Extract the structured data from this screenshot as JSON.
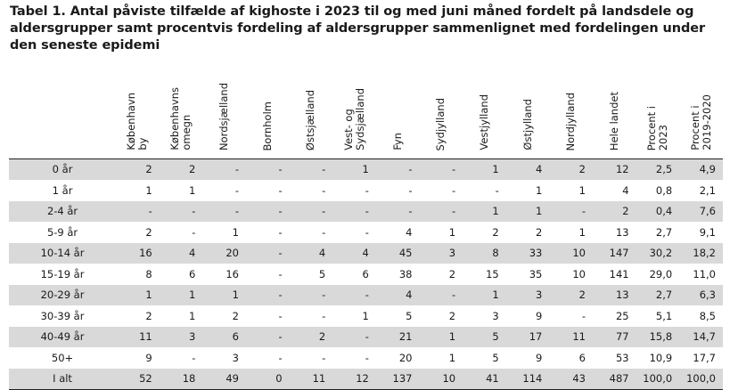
{
  "title": "Tabel 1. Antal påviste tilfælde af kighoste i 2023 til og med juni måned fordelt på landsdele og aldersgrupper samt procentvis fordeling af aldersgrupper sammenlignet med fordelingen under den seneste epidemi",
  "columns": [
    "København\nby",
    "Københavns\nomegn",
    "Nordsjælland",
    "Bornholm",
    "Østsjælland",
    "Vest- og\nSydsjælland",
    "Fyn",
    "Sydjylland",
    "Vestjylland",
    "Østjylland",
    "Nordjylland",
    "Hele landet",
    "Procent i\n2023",
    "Procent i\n2019-2020"
  ],
  "rows": [
    {
      "label": "0 år",
      "cells": [
        "2",
        "2",
        "-",
        "-",
        "-",
        "1",
        "-",
        "-",
        "1",
        "4",
        "2",
        "12",
        "2,5",
        "4,9"
      ]
    },
    {
      "label": "1 år",
      "cells": [
        "1",
        "1",
        "-",
        "-",
        "-",
        "-",
        "-",
        "-",
        "-",
        "1",
        "1",
        "4",
        "0,8",
        "2,1"
      ]
    },
    {
      "label": "2-4 år",
      "cells": [
        "-",
        "-",
        "-",
        "-",
        "-",
        "-",
        "-",
        "-",
        "1",
        "1",
        "-",
        "2",
        "0,4",
        "7,6"
      ]
    },
    {
      "label": "5-9 år",
      "cells": [
        "2",
        "-",
        "1",
        "-",
        "-",
        "-",
        "4",
        "1",
        "2",
        "2",
        "1",
        "13",
        "2,7",
        "9,1"
      ]
    },
    {
      "label": "10-14 år",
      "cells": [
        "16",
        "4",
        "20",
        "-",
        "4",
        "4",
        "45",
        "3",
        "8",
        "33",
        "10",
        "147",
        "30,2",
        "18,2"
      ]
    },
    {
      "label": "15-19 år",
      "cells": [
        "8",
        "6",
        "16",
        "-",
        "5",
        "6",
        "38",
        "2",
        "15",
        "35",
        "10",
        "141",
        "29,0",
        "11,0"
      ]
    },
    {
      "label": "20-29 år",
      "cells": [
        "1",
        "1",
        "1",
        "-",
        "-",
        "-",
        "4",
        "-",
        "1",
        "3",
        "2",
        "13",
        "2,7",
        "6,3"
      ]
    },
    {
      "label": "30-39 år",
      "cells": [
        "2",
        "1",
        "2",
        "-",
        "-",
        "1",
        "5",
        "2",
        "3",
        "9",
        "-",
        "25",
        "5,1",
        "8,5"
      ]
    },
    {
      "label": "40-49 år",
      "cells": [
        "11",
        "3",
        "6",
        "-",
        "2",
        "-",
        "21",
        "1",
        "5",
        "17",
        "11",
        "77",
        "15,8",
        "14,7"
      ]
    },
    {
      "label": "50+",
      "cells": [
        "9",
        "-",
        "3",
        "-",
        "-",
        "-",
        "20",
        "1",
        "5",
        "9",
        "6",
        "53",
        "10,9",
        "17,7"
      ]
    },
    {
      "label": "I alt",
      "cells": [
        "52",
        "18",
        "49",
        "0",
        "11",
        "12",
        "137",
        "10",
        "41",
        "114",
        "43",
        "487",
        "100,0",
        "100,0"
      ]
    }
  ]
}
